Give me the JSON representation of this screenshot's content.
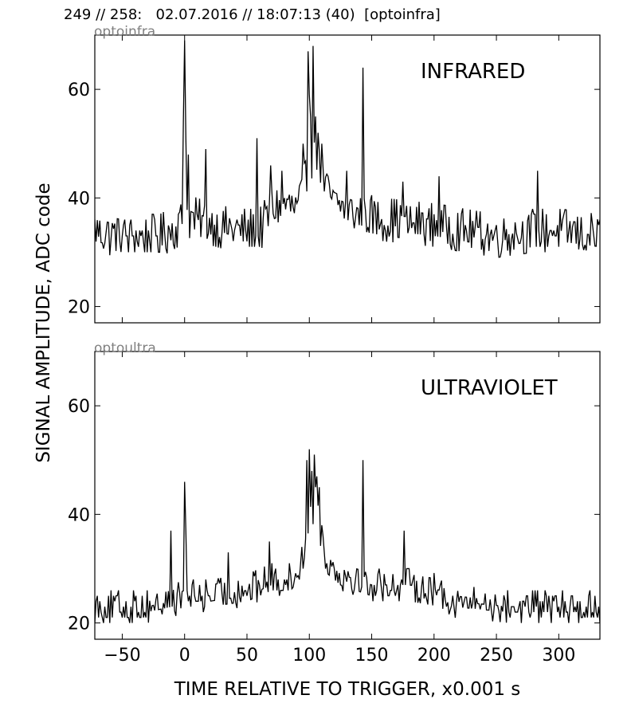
{
  "header": "249 // 258:   02.07.2016 // 18:07:13 (40)  [optoinfra]",
  "axes": {
    "ylabel": "SIGNAL AMPLITUDE,  ADC code",
    "xlabel": "TIME RELATIVE TO TRIGGER,   x0.001 s",
    "xlim": [
      -72,
      333
    ],
    "ylim": [
      17,
      70
    ],
    "xticks": [
      "−50",
      "0",
      "50",
      "100",
      "150",
      "200",
      "250",
      "300"
    ],
    "xtick_values": [
      -50,
      0,
      50,
      100,
      150,
      200,
      250,
      300
    ],
    "yticks": [
      "20",
      "40",
      "60"
    ],
    "ytick_values": [
      20,
      40,
      60
    ]
  },
  "colors": {
    "trace": "#000000",
    "source_label": "#808080"
  },
  "chart_data": [
    {
      "type": "line",
      "source": "optoinfra",
      "title": "INFRARED",
      "x_step": 1,
      "baseline": [
        [
          -72,
          34
        ],
        [
          -50,
          33
        ],
        [
          -20,
          33
        ],
        [
          -5,
          35
        ],
        [
          0,
          37
        ],
        [
          10,
          36
        ],
        [
          40,
          34
        ],
        [
          60,
          34
        ],
        [
          70,
          38
        ],
        [
          80,
          39
        ],
        [
          90,
          38
        ],
        [
          95,
          41
        ],
        [
          100,
          48
        ],
        [
          105,
          47
        ],
        [
          110,
          43
        ],
        [
          120,
          39
        ],
        [
          140,
          37
        ],
        [
          160,
          36
        ],
        [
          200,
          35
        ],
        [
          250,
          33
        ],
        [
          280,
          34
        ],
        [
          300,
          34
        ],
        [
          333,
          33
        ]
      ],
      "noise": 4,
      "spikes": [
        [
          -1,
          54
        ],
        [
          0,
          69
        ],
        [
          1,
          51
        ],
        [
          3,
          48
        ],
        [
          17,
          49
        ],
        [
          58,
          51
        ],
        [
          69,
          46
        ],
        [
          78,
          45
        ],
        [
          95,
          50
        ],
        [
          99,
          67
        ],
        [
          100,
          59
        ],
        [
          101,
          55
        ],
        [
          103,
          68
        ],
        [
          105,
          55
        ],
        [
          107,
          52
        ],
        [
          110,
          50
        ],
        [
          130,
          45
        ],
        [
          143,
          64
        ],
        [
          175,
          43
        ],
        [
          204,
          44
        ],
        [
          283,
          45
        ]
      ]
    },
    {
      "type": "line",
      "source": "optoultra",
      "title": "ULTRAVIOLET",
      "x_step": 1,
      "baseline": [
        [
          -72,
          23
        ],
        [
          -30,
          23
        ],
        [
          -10,
          24
        ],
        [
          0,
          25
        ],
        [
          20,
          25
        ],
        [
          50,
          26
        ],
        [
          70,
          28
        ],
        [
          85,
          28
        ],
        [
          92,
          30
        ],
        [
          96,
          34
        ],
        [
          100,
          40
        ],
        [
          105,
          42
        ],
        [
          110,
          36
        ],
        [
          115,
          31
        ],
        [
          125,
          29
        ],
        [
          150,
          27
        ],
        [
          180,
          27
        ],
        [
          205,
          26
        ],
        [
          215,
          24
        ],
        [
          260,
          23
        ],
        [
          300,
          23
        ],
        [
          333,
          23
        ]
      ],
      "noise": 3,
      "spikes": [
        [
          -11,
          37
        ],
        [
          0,
          46
        ],
        [
          1,
          37
        ],
        [
          35,
          33
        ],
        [
          68,
          35
        ],
        [
          98,
          50
        ],
        [
          100,
          52
        ],
        [
          102,
          48
        ],
        [
          104,
          51
        ],
        [
          106,
          47
        ],
        [
          108,
          45
        ],
        [
          143,
          50
        ],
        [
          176,
          37
        ]
      ]
    }
  ]
}
